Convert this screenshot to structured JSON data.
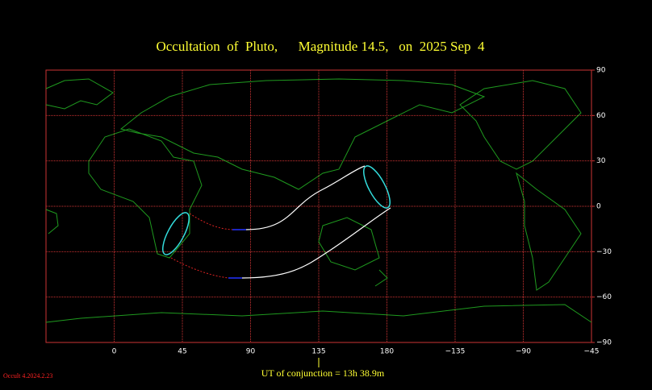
{
  "map": {
    "title": "Occultation  of  Pluto,      Magnitude 14.5,   on  2025 Sep  4",
    "xlim": [
      -45,
      315
    ],
    "ylim": [
      -90,
      90
    ],
    "lon_ticks": [
      0,
      45,
      90,
      135,
      180,
      {
        "value": 225,
        "label": "−135"
      },
      {
        "value": 270,
        "label": "−90"
      },
      {
        "value": 315,
        "label": "−45"
      }
    ],
    "lat_ticks": [
      90,
      60,
      30,
      0,
      {
        "value": -30,
        "label": "−30"
      },
      {
        "value": -60,
        "label": "−60"
      },
      {
        "value": -90,
        "label": "−90"
      }
    ],
    "conjunction_label": "UT of conjunction = 13h 38.9m",
    "conjunction_lon": 135,
    "version": "Occult 4.2024.2.23"
  }
}
